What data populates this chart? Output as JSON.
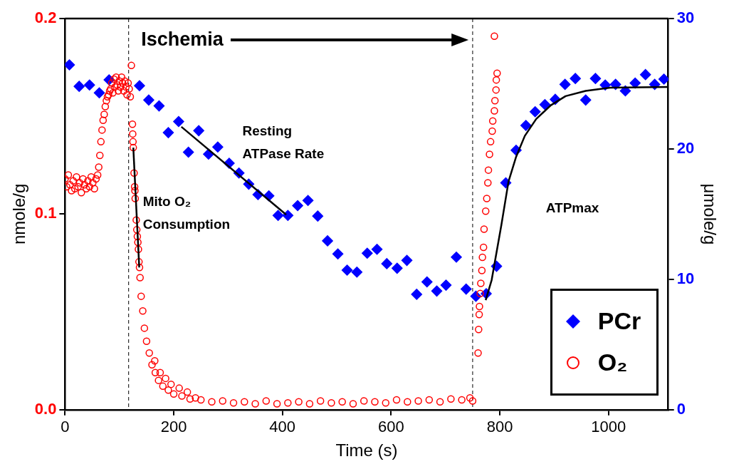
{
  "chart_data": {
    "type": "scatter",
    "xlabel": "Time (s)",
    "ylabel": "nmole/g",
    "y2label": "μmole/g",
    "xlim": [
      0,
      1110
    ],
    "xticks": [
      0,
      200,
      400,
      600,
      800,
      1000
    ],
    "ylim": [
      0,
      0.2
    ],
    "yticks": [
      {
        "value": 0,
        "label": "0.0"
      },
      0.1,
      0.2
    ],
    "y2lim": [
      0,
      30
    ],
    "y2ticks": [
      0,
      10,
      20,
      30
    ],
    "grid": false,
    "legend": "bottom right",
    "ref_lines": [
      {
        "axis": "x",
        "value": 117,
        "line_style": "dashed",
        "color": "#000000"
      },
      {
        "axis": "x",
        "value": 750,
        "line_style": "dashed",
        "color": "#000000"
      }
    ],
    "annotations": [
      "Ischemia",
      "Mito O₂\nConsumption",
      "Resting\nATPase Rate",
      "ATPmax"
    ],
    "series": [
      {
        "name": "PCr",
        "color": "#0000ff",
        "marker": "diamond",
        "axis": "y2",
        "x": [
          8,
          26,
          45,
          63,
          81,
          137,
          154,
          173,
          190,
          209,
          227,
          246,
          264,
          281,
          302,
          320,
          338,
          355,
          375,
          392,
          410,
          428,
          447,
          465,
          483,
          502,
          519,
          537,
          556,
          574,
          592,
          611,
          629,
          647,
          666,
          684,
          701,
          720,
          738,
          756,
          775,
          794,
          811,
          830,
          848,
          865,
          883,
          902,
          920,
          939,
          958,
          976,
          994,
          1013,
          1031,
          1049,
          1068,
          1085,
          1102
        ],
        "values": [
          26.45,
          24.8,
          24.9,
          24.3,
          25.3,
          24.85,
          23.75,
          23.3,
          21.25,
          22.1,
          19.75,
          21.4,
          19.6,
          20.15,
          18.9,
          18.15,
          17.3,
          16.5,
          16.4,
          14.9,
          14.9,
          15.65,
          16.05,
          14.85,
          12.95,
          11.95,
          10.7,
          10.55,
          12.0,
          12.3,
          11.2,
          10.85,
          11.45,
          8.85,
          9.8,
          9.1,
          9.55,
          11.7,
          9.25,
          8.7,
          8.9,
          11.0,
          17.4,
          19.9,
          21.8,
          22.85,
          23.4,
          23.8,
          24.95,
          25.4,
          23.75,
          25.4,
          24.9,
          24.95,
          24.45,
          25.05,
          25.7,
          24.95,
          25.35
        ]
      },
      {
        "name": "O₂",
        "color": "#ff0000",
        "marker": "circle",
        "x": [
          0,
          3,
          6,
          9,
          12,
          15,
          18,
          21,
          24,
          27,
          30,
          33,
          36,
          39,
          42,
          45,
          48,
          51,
          54,
          57,
          60,
          62,
          64,
          66,
          68,
          70,
          72,
          74,
          76,
          78,
          80,
          82,
          84,
          86,
          88,
          90,
          92,
          94,
          96,
          98,
          100,
          102,
          104,
          106,
          108,
          110,
          112,
          114,
          116,
          118,
          120,
          122,
          124,
          124.5,
          125,
          125.5,
          127,
          128,
          128.5,
          129,
          131,
          132,
          133,
          134,
          135,
          136,
          137,
          138,
          140,
          143,
          146,
          150,
          155,
          160,
          165,
          166,
          172,
          175,
          180,
          185,
          190,
          195,
          200,
          210,
          215,
          225,
          230,
          240,
          250,
          270,
          290,
          310,
          330,
          350,
          370,
          390,
          410,
          430,
          450,
          470,
          490,
          510,
          530,
          550,
          570,
          590,
          610,
          630,
          650,
          670,
          690,
          710,
          730,
          745,
          750,
          760,
          761,
          762,
          762.5,
          764,
          765,
          767,
          768,
          770,
          771,
          774,
          776,
          778,
          779,
          781,
          783,
          786,
          787,
          790,
          791,
          793,
          793.5,
          795,
          790
        ],
        "values": [
          0.118,
          0.114,
          0.12,
          0.115,
          0.112,
          0.117,
          0.113,
          0.119,
          0.114,
          0.116,
          0.111,
          0.118,
          0.115,
          0.113,
          0.117,
          0.114,
          0.119,
          0.116,
          0.113,
          0.118,
          0.12,
          0.124,
          0.13,
          0.137,
          0.143,
          0.148,
          0.151,
          0.155,
          0.158,
          0.16,
          0.161,
          0.163,
          0.164,
          0.167,
          0.162,
          0.169,
          0.165,
          0.17,
          0.166,
          0.163,
          0.168,
          0.165,
          0.17,
          0.167,
          0.163,
          0.168,
          0.165,
          0.161,
          0.167,
          0.164,
          0.16,
          0.176,
          0.146,
          0.141,
          0.137,
          0.134,
          0.121,
          0.114,
          0.112,
          0.108,
          0.097,
          0.092,
          0.0886,
          0.0856,
          0.082,
          0.0756,
          0.0727,
          0.0675,
          0.058,
          0.0505,
          0.0417,
          0.035,
          0.029,
          0.023,
          0.025,
          0.019,
          0.015,
          0.019,
          0.012,
          0.016,
          0.01,
          0.013,
          0.008,
          0.011,
          0.007,
          0.009,
          0.0055,
          0.006,
          0.005,
          0.004,
          0.0045,
          0.0035,
          0.004,
          0.003,
          0.0045,
          0.003,
          0.0035,
          0.004,
          0.003,
          0.0045,
          0.0035,
          0.004,
          0.003,
          0.0045,
          0.004,
          0.0035,
          0.005,
          0.004,
          0.0045,
          0.005,
          0.004,
          0.0055,
          0.005,
          0.006,
          0.0045,
          0.029,
          0.041,
          0.0487,
          0.0528,
          0.0594,
          0.0646,
          0.0712,
          0.0779,
          0.083,
          0.0923,
          0.1015,
          0.108,
          0.116,
          0.1225,
          0.1306,
          0.137,
          0.1424,
          0.1476,
          0.1528,
          0.158,
          0.1635,
          0.1686,
          0.172,
          0.191
        ]
      },
      {
        "type": "line",
        "color": "#000000",
        "marker": "none",
        "x": [
          125.6,
          136.5
        ],
        "values": [
          0.134,
          0.0727
        ]
      },
      {
        "type": "line",
        "color": "#000000",
        "marker": "none",
        "axis": "y2",
        "x": [
          214,
          407
        ],
        "values": [
          21.7,
          14.95
        ]
      },
      {
        "type": "line",
        "color": "#000000",
        "marker": "none",
        "axis": "y2",
        "x": [
          774,
          785,
          803,
          816,
          830,
          846,
          867,
          894,
          921,
          958,
          1003,
          1110
        ],
        "values": [
          8.4,
          9.95,
          14.2,
          17.5,
          19.4,
          21.0,
          22.3,
          23.35,
          24.05,
          24.45,
          24.7,
          24.75
        ]
      }
    ]
  }
}
